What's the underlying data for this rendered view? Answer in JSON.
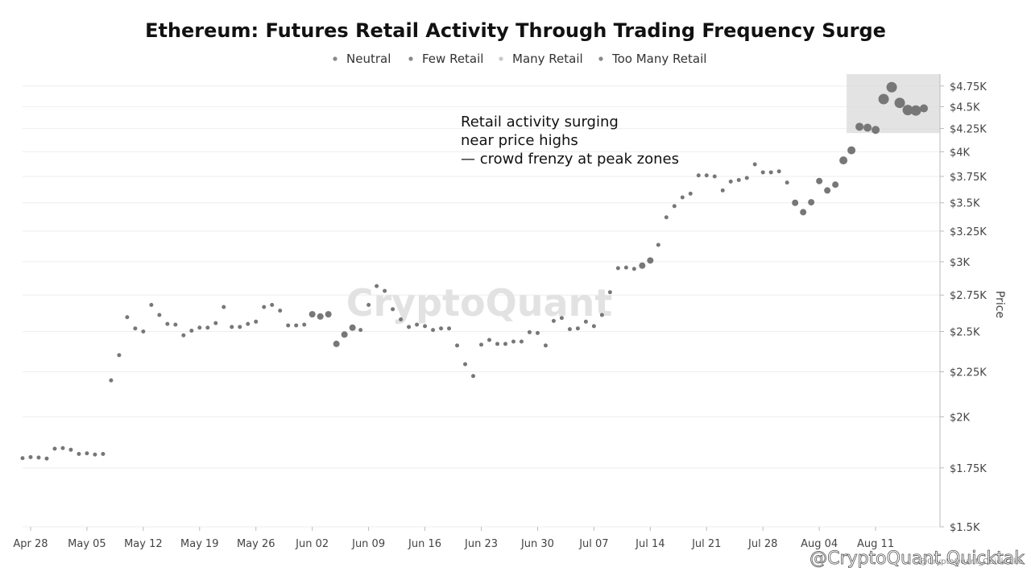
{
  "chart_data": {
    "type": "scatter",
    "title": "Ethereum: Futures Retail Activity Through Trading Frequency Surge",
    "legend": [
      "Neutral",
      "Few Retail",
      "Many Retail",
      "Too Many Retail"
    ],
    "legend_placement": "top-center",
    "ylabel": "Price",
    "y_scale": "log",
    "ylim": [
      1500,
      4900
    ],
    "y_ticks": [
      {
        "v": 4750,
        "label": "$4.75K"
      },
      {
        "v": 4500,
        "label": "$4.5K"
      },
      {
        "v": 4250,
        "label": "$4.25K"
      },
      {
        "v": 4000,
        "label": "$4K"
      },
      {
        "v": 3750,
        "label": "$3.75K"
      },
      {
        "v": 3500,
        "label": "$3.5K"
      },
      {
        "v": 3250,
        "label": "$3.25K"
      },
      {
        "v": 3000,
        "label": "$3K"
      },
      {
        "v": 2750,
        "label": "$2.75K"
      },
      {
        "v": 2500,
        "label": "$2.5K"
      },
      {
        "v": 2250,
        "label": "$2.25K"
      },
      {
        "v": 2000,
        "label": "$2K"
      },
      {
        "v": 1750,
        "label": "$1.75K"
      },
      {
        "v": 1500,
        "label": "$1.5K"
      }
    ],
    "x_start": "2025-04-27",
    "x_end": "2025-08-19",
    "x_ticks": [
      {
        "date": "2025-04-28",
        "label": "Apr 28"
      },
      {
        "date": "2025-05-05",
        "label": "May 05"
      },
      {
        "date": "2025-05-12",
        "label": "May 12"
      },
      {
        "date": "2025-05-19",
        "label": "May 19"
      },
      {
        "date": "2025-05-26",
        "label": "May 26"
      },
      {
        "date": "2025-06-02",
        "label": "Jun 02"
      },
      {
        "date": "2025-06-09",
        "label": "Jun 09"
      },
      {
        "date": "2025-06-16",
        "label": "Jun 16"
      },
      {
        "date": "2025-06-23",
        "label": "Jun 23"
      },
      {
        "date": "2025-06-30",
        "label": "Jun 30"
      },
      {
        "date": "2025-07-07",
        "label": "Jul 07"
      },
      {
        "date": "2025-07-14",
        "label": "Jul 14"
      },
      {
        "date": "2025-07-21",
        "label": "Jul 21"
      },
      {
        "date": "2025-07-28",
        "label": "Jul 28"
      },
      {
        "date": "2025-08-04",
        "label": "Aug 04"
      },
      {
        "date": "2025-08-11",
        "label": "Aug 11"
      }
    ],
    "grid": true,
    "points": [
      {
        "date": "2025-04-27",
        "y": 1795,
        "r": 1
      },
      {
        "date": "2025-04-28",
        "y": 1800,
        "r": 1
      },
      {
        "date": "2025-04-29",
        "y": 1798,
        "r": 1
      },
      {
        "date": "2025-04-30",
        "y": 1793,
        "r": 1
      },
      {
        "date": "2025-05-01",
        "y": 1840,
        "r": 1
      },
      {
        "date": "2025-05-02",
        "y": 1843,
        "r": 1
      },
      {
        "date": "2025-05-03",
        "y": 1835,
        "r": 1
      },
      {
        "date": "2025-05-04",
        "y": 1815,
        "r": 1
      },
      {
        "date": "2025-05-05",
        "y": 1818,
        "r": 1
      },
      {
        "date": "2025-05-06",
        "y": 1812,
        "r": 1
      },
      {
        "date": "2025-05-07",
        "y": 1815,
        "r": 1
      },
      {
        "date": "2025-05-08",
        "y": 2200,
        "r": 1
      },
      {
        "date": "2025-05-09",
        "y": 2350,
        "r": 1
      },
      {
        "date": "2025-05-10",
        "y": 2595,
        "r": 1
      },
      {
        "date": "2025-05-11",
        "y": 2520,
        "r": 1
      },
      {
        "date": "2025-05-12",
        "y": 2500,
        "r": 1
      },
      {
        "date": "2025-05-13",
        "y": 2680,
        "r": 1
      },
      {
        "date": "2025-05-14",
        "y": 2610,
        "r": 1
      },
      {
        "date": "2025-05-15",
        "y": 2550,
        "r": 1
      },
      {
        "date": "2025-05-16",
        "y": 2545,
        "r": 1
      },
      {
        "date": "2025-05-17",
        "y": 2475,
        "r": 1
      },
      {
        "date": "2025-05-18",
        "y": 2505,
        "r": 1
      },
      {
        "date": "2025-05-19",
        "y": 2525,
        "r": 1
      },
      {
        "date": "2025-05-20",
        "y": 2525,
        "r": 1
      },
      {
        "date": "2025-05-21",
        "y": 2555,
        "r": 1
      },
      {
        "date": "2025-05-22",
        "y": 2665,
        "r": 1
      },
      {
        "date": "2025-05-23",
        "y": 2530,
        "r": 1
      },
      {
        "date": "2025-05-24",
        "y": 2530,
        "r": 1
      },
      {
        "date": "2025-05-25",
        "y": 2550,
        "r": 1
      },
      {
        "date": "2025-05-26",
        "y": 2565,
        "r": 1
      },
      {
        "date": "2025-05-27",
        "y": 2665,
        "r": 1
      },
      {
        "date": "2025-05-28",
        "y": 2680,
        "r": 1
      },
      {
        "date": "2025-05-29",
        "y": 2640,
        "r": 1
      },
      {
        "date": "2025-05-30",
        "y": 2540,
        "r": 1
      },
      {
        "date": "2025-05-31",
        "y": 2540,
        "r": 1
      },
      {
        "date": "2025-06-01",
        "y": 2545,
        "r": 1
      },
      {
        "date": "2025-06-02",
        "y": 2615,
        "r": 2
      },
      {
        "date": "2025-06-03",
        "y": 2600,
        "r": 2
      },
      {
        "date": "2025-06-04",
        "y": 2615,
        "r": 2
      },
      {
        "date": "2025-06-05",
        "y": 2420,
        "r": 2
      },
      {
        "date": "2025-06-06",
        "y": 2480,
        "r": 2
      },
      {
        "date": "2025-06-07",
        "y": 2525,
        "r": 2
      },
      {
        "date": "2025-06-08",
        "y": 2510,
        "r": 1
      },
      {
        "date": "2025-06-09",
        "y": 2680,
        "r": 1
      },
      {
        "date": "2025-06-10",
        "y": 2815,
        "r": 1
      },
      {
        "date": "2025-06-11",
        "y": 2780,
        "r": 1
      },
      {
        "date": "2025-06-12",
        "y": 2650,
        "r": 1
      },
      {
        "date": "2025-06-13",
        "y": 2580,
        "r": 1
      },
      {
        "date": "2025-06-14",
        "y": 2530,
        "r": 1
      },
      {
        "date": "2025-06-15",
        "y": 2545,
        "r": 1
      },
      {
        "date": "2025-06-16",
        "y": 2535,
        "r": 1
      },
      {
        "date": "2025-06-17",
        "y": 2510,
        "r": 1
      },
      {
        "date": "2025-06-18",
        "y": 2520,
        "r": 1
      },
      {
        "date": "2025-06-19",
        "y": 2520,
        "r": 1
      },
      {
        "date": "2025-06-20",
        "y": 2410,
        "r": 1
      },
      {
        "date": "2025-06-21",
        "y": 2295,
        "r": 1
      },
      {
        "date": "2025-06-22",
        "y": 2225,
        "r": 1
      },
      {
        "date": "2025-06-23",
        "y": 2415,
        "r": 1
      },
      {
        "date": "2025-06-24",
        "y": 2445,
        "r": 1
      },
      {
        "date": "2025-06-25",
        "y": 2420,
        "r": 1
      },
      {
        "date": "2025-06-26",
        "y": 2420,
        "r": 1
      },
      {
        "date": "2025-06-27",
        "y": 2435,
        "r": 1
      },
      {
        "date": "2025-06-28",
        "y": 2435,
        "r": 1
      },
      {
        "date": "2025-06-29",
        "y": 2495,
        "r": 1
      },
      {
        "date": "2025-06-30",
        "y": 2490,
        "r": 1
      },
      {
        "date": "2025-07-01",
        "y": 2410,
        "r": 1
      },
      {
        "date": "2025-07-02",
        "y": 2570,
        "r": 1
      },
      {
        "date": "2025-07-03",
        "y": 2590,
        "r": 1
      },
      {
        "date": "2025-07-04",
        "y": 2515,
        "r": 1
      },
      {
        "date": "2025-07-05",
        "y": 2520,
        "r": 1
      },
      {
        "date": "2025-07-06",
        "y": 2565,
        "r": 1
      },
      {
        "date": "2025-07-07",
        "y": 2535,
        "r": 1
      },
      {
        "date": "2025-07-08",
        "y": 2610,
        "r": 1
      },
      {
        "date": "2025-07-09",
        "y": 2770,
        "r": 1
      },
      {
        "date": "2025-07-10",
        "y": 2950,
        "r": 1
      },
      {
        "date": "2025-07-11",
        "y": 2955,
        "r": 1
      },
      {
        "date": "2025-07-12",
        "y": 2945,
        "r": 1
      },
      {
        "date": "2025-07-13",
        "y": 2970,
        "r": 2
      },
      {
        "date": "2025-07-14",
        "y": 3010,
        "r": 2
      },
      {
        "date": "2025-07-15",
        "y": 3135,
        "r": 1
      },
      {
        "date": "2025-07-16",
        "y": 3370,
        "r": 1
      },
      {
        "date": "2025-07-17",
        "y": 3470,
        "r": 1
      },
      {
        "date": "2025-07-18",
        "y": 3550,
        "r": 1
      },
      {
        "date": "2025-07-19",
        "y": 3585,
        "r": 1
      },
      {
        "date": "2025-07-20",
        "y": 3760,
        "r": 1
      },
      {
        "date": "2025-07-21",
        "y": 3760,
        "r": 1
      },
      {
        "date": "2025-07-22",
        "y": 3750,
        "r": 1
      },
      {
        "date": "2025-07-23",
        "y": 3615,
        "r": 1
      },
      {
        "date": "2025-07-24",
        "y": 3700,
        "r": 1
      },
      {
        "date": "2025-07-25",
        "y": 3715,
        "r": 1
      },
      {
        "date": "2025-07-26",
        "y": 3735,
        "r": 1
      },
      {
        "date": "2025-07-27",
        "y": 3870,
        "r": 1
      },
      {
        "date": "2025-07-28",
        "y": 3790,
        "r": 1
      },
      {
        "date": "2025-07-29",
        "y": 3790,
        "r": 1
      },
      {
        "date": "2025-07-30",
        "y": 3800,
        "r": 1
      },
      {
        "date": "2025-07-31",
        "y": 3690,
        "r": 1
      },
      {
        "date": "2025-08-01",
        "y": 3500,
        "r": 2
      },
      {
        "date": "2025-08-02",
        "y": 3415,
        "r": 2
      },
      {
        "date": "2025-08-03",
        "y": 3505,
        "r": 2
      },
      {
        "date": "2025-08-04",
        "y": 3705,
        "r": 2
      },
      {
        "date": "2025-08-05",
        "y": 3615,
        "r": 2
      },
      {
        "date": "2025-08-06",
        "y": 3670,
        "r": 2
      },
      {
        "date": "2025-08-07",
        "y": 3910,
        "r": 3
      },
      {
        "date": "2025-08-08",
        "y": 4015,
        "r": 3
      },
      {
        "date": "2025-08-09",
        "y": 4270,
        "r": 3
      },
      {
        "date": "2025-08-10",
        "y": 4260,
        "r": 3
      },
      {
        "date": "2025-08-11",
        "y": 4235,
        "r": 3
      },
      {
        "date": "2025-08-12",
        "y": 4590,
        "r": 4
      },
      {
        "date": "2025-08-13",
        "y": 4735,
        "r": 4
      },
      {
        "date": "2025-08-14",
        "y": 4545,
        "r": 4
      },
      {
        "date": "2025-08-15",
        "y": 4460,
        "r": 4
      },
      {
        "date": "2025-08-16",
        "y": 4455,
        "r": 4
      },
      {
        "date": "2025-08-17",
        "y": 4480,
        "r": 3
      }
    ],
    "highlight": {
      "date_from": "2025-08-08",
      "date_to": "2025-08-19",
      "y_from": 4200,
      "y_to": 4900
    },
    "annotation": [
      "Retail activity surging",
      "near price highs",
      "— crowd frenzy at peak zones"
    ],
    "watermark": "CryptoQuant",
    "credit": "@CryptoQuant Quicktak",
    "credit_sub": "@CryptoQuant_Quicktake",
    "colors": {
      "point": "#777777",
      "highlight": "#dcdcdc",
      "grid": "#eeeeee",
      "axis": "#bbbbbb",
      "legend_dot": "#888888"
    }
  }
}
